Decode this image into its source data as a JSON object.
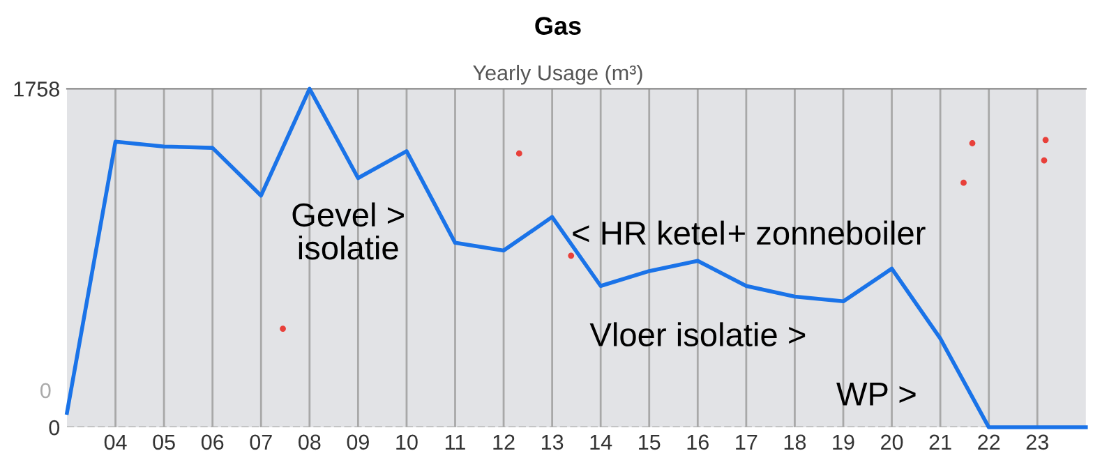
{
  "chart_data": {
    "type": "line",
    "title": "Gas",
    "subtitle": "Yearly Usage (m³)",
    "x": [
      2003,
      2004,
      2005,
      2006,
      2007,
      2008,
      2009,
      2010,
      2011,
      2012,
      2013,
      2014,
      2015,
      2016,
      2017,
      2018,
      2019,
      2020,
      2021,
      2022,
      2023,
      2024
    ],
    "series": [
      {
        "color": "#1a73e8",
        "values": [
          75,
          1483,
          1458,
          1451,
          1203,
          1758,
          1294,
          1434,
          958,
          918,
          1092,
          734,
          811,
          864,
          734,
          679,
          654,
          824,
          461,
          0,
          0,
          0
        ]
      },
      {
        "type": "scatter",
        "color": "#e8403a",
        "marker": "circle",
        "x": [
          2007.45,
          2012.32,
          2013.39,
          2021.66,
          2021.48,
          2023.17,
          2023.14
        ],
        "values": [
          512,
          1422,
          891,
          1475,
          1270,
          1492,
          1386
        ]
      }
    ],
    "xlim": [
      2003,
      2024
    ],
    "ylim": [
      0,
      1758
    ],
    "xticks": [
      {
        "value": 2004,
        "label": "04"
      },
      {
        "value": 2005,
        "label": "05"
      },
      {
        "value": 2006,
        "label": "06"
      },
      {
        "value": 2007,
        "label": "07"
      },
      {
        "value": 2008,
        "label": "08"
      },
      {
        "value": 2009,
        "label": "09"
      },
      {
        "value": 2010,
        "label": "10"
      },
      {
        "value": 2011,
        "label": "11"
      },
      {
        "value": 2012,
        "label": "12"
      },
      {
        "value": 2013,
        "label": "13"
      },
      {
        "value": 2014,
        "label": "14"
      },
      {
        "value": 2015,
        "label": "15"
      },
      {
        "value": 2016,
        "label": "16"
      },
      {
        "value": 2017,
        "label": "17"
      },
      {
        "value": 2018,
        "label": "18"
      },
      {
        "value": 2019,
        "label": "19"
      },
      {
        "value": 2020,
        "label": "20"
      },
      {
        "value": 2021,
        "label": "21"
      },
      {
        "value": 2022,
        "label": "22"
      },
      {
        "value": 2023,
        "label": "23"
      }
    ],
    "yticks": [
      0,
      1758
    ],
    "grid": "x",
    "marker": "none",
    "line_style": "solid",
    "legend": false,
    "ref_lines": [
      {
        "axis": "y",
        "value": 0,
        "label": "0",
        "color": "#aaaaaa",
        "line_style": "dashed"
      }
    ],
    "annotations": [
      "Gevel >\nisolatie",
      "< HR ketel",
      "+ zonneboiler",
      "Vloer isolatie >",
      "WP >"
    ]
  }
}
